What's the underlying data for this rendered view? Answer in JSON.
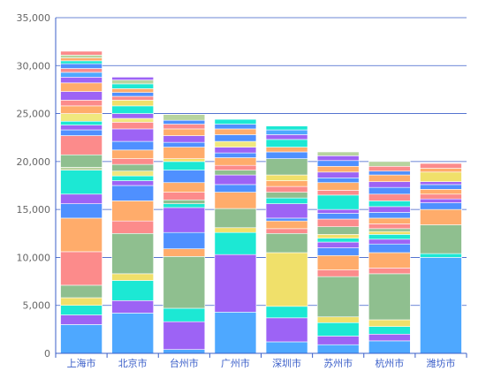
{
  "chart_data": {
    "type": "bar",
    "stacked": true,
    "title": "",
    "xlabel": "",
    "ylabel": "",
    "ylim": [
      0,
      35000
    ],
    "yticks": [
      0,
      5000,
      10000,
      15000,
      20000,
      25000,
      30000,
      35000
    ],
    "ytick_labels": [
      "0",
      "5,000",
      "10,000",
      "15,000",
      "20,000",
      "25,000",
      "30,000",
      "35,000"
    ],
    "grid": true,
    "categories": [
      "上海市",
      "北京市",
      "台州市",
      "广州市",
      "深圳市",
      "苏州市",
      "杭州市",
      "潍坊市"
    ],
    "totals": [
      31500,
      28800,
      24900,
      24400,
      23700,
      21000,
      20000,
      19800
    ],
    "palette": [
      "#4ea8ff",
      "#9d63f5",
      "#1ce8d4",
      "#f0e06a",
      "#8fbf8f",
      "#fc8b8b",
      "#ffac6b",
      "#4f90ff",
      "#b7d49e",
      "#f0e87e"
    ],
    "segments": [
      [
        [
          0,
          3000,
          "#4ea8ff"
        ],
        [
          3000,
          4000,
          "#9d63f5"
        ],
        [
          4000,
          5000,
          "#1ce8d4"
        ],
        [
          5000,
          5800,
          "#f0e06a"
        ],
        [
          5800,
          7100,
          "#8fbf8f"
        ],
        [
          7100,
          10600,
          "#fc8b8b"
        ],
        [
          10600,
          14100,
          "#ffac6b"
        ],
        [
          14100,
          15600,
          "#4f90ff"
        ],
        [
          15600,
          16600,
          "#9d63f5"
        ],
        [
          16600,
          19100,
          "#1ce8d4"
        ],
        [
          19100,
          19400,
          "#b7d49e"
        ],
        [
          19400,
          20700,
          "#8fbf8f"
        ],
        [
          20700,
          22700,
          "#fc8b8b"
        ],
        [
          22700,
          23300,
          "#4f90ff"
        ],
        [
          23300,
          23800,
          "#9d63f5"
        ],
        [
          23800,
          24200,
          "#1ce8d4"
        ],
        [
          24200,
          25000,
          "#f0e87e"
        ],
        [
          25000,
          25800,
          "#ffac6b"
        ],
        [
          25800,
          26400,
          "#fc8b8b"
        ],
        [
          26400,
          27300,
          "#9d63f5"
        ],
        [
          27300,
          28200,
          "#ffac6b"
        ],
        [
          28200,
          28800,
          "#9d63f5"
        ],
        [
          28800,
          29300,
          "#4ea8ff"
        ],
        [
          29300,
          29700,
          "#fc8b8b"
        ],
        [
          29700,
          30200,
          "#4f90ff"
        ],
        [
          30200,
          30500,
          "#1ce8d4"
        ],
        [
          30500,
          30800,
          "#ffac6b"
        ],
        [
          30800,
          31100,
          "#b7d49e"
        ],
        [
          31100,
          31500,
          "#fc8b8b"
        ]
      ],
      [
        [
          0,
          4200,
          "#4ea8ff"
        ],
        [
          4200,
          5500,
          "#9d63f5"
        ],
        [
          5500,
          7600,
          "#1ce8d4"
        ],
        [
          7600,
          8300,
          "#f0e06a"
        ],
        [
          8300,
          12500,
          "#8fbf8f"
        ],
        [
          12500,
          13800,
          "#fc8b8b"
        ],
        [
          13800,
          15900,
          "#ffac6b"
        ],
        [
          15900,
          17500,
          "#4f90ff"
        ],
        [
          17500,
          18000,
          "#9d63f5"
        ],
        [
          18000,
          18500,
          "#1ce8d4"
        ],
        [
          18500,
          19000,
          "#f0e87e"
        ],
        [
          19000,
          19700,
          "#8fbf8f"
        ],
        [
          19700,
          20300,
          "#fc8b8b"
        ],
        [
          20300,
          21200,
          "#ffac6b"
        ],
        [
          21200,
          22100,
          "#4f90ff"
        ],
        [
          22100,
          23400,
          "#9d63f5"
        ],
        [
          23400,
          24100,
          "#fc8b8b"
        ],
        [
          24100,
          24500,
          "#f0e87e"
        ],
        [
          24500,
          25000,
          "#9d63f5"
        ],
        [
          25000,
          25800,
          "#1ce8d4"
        ],
        [
          25800,
          26400,
          "#f0e06a"
        ],
        [
          26400,
          26800,
          "#fc8b8b"
        ],
        [
          26800,
          27200,
          "#4f90ff"
        ],
        [
          27200,
          27600,
          "#ffac6b"
        ],
        [
          27600,
          28100,
          "#1ce8d4"
        ],
        [
          28100,
          28500,
          "#b7d49e"
        ],
        [
          28500,
          28800,
          "#9d63f5"
        ]
      ],
      [
        [
          0,
          400,
          "#4ea8ff"
        ],
        [
          400,
          3300,
          "#9d63f5"
        ],
        [
          3300,
          4700,
          "#1ce8d4"
        ],
        [
          4700,
          10100,
          "#8fbf8f"
        ],
        [
          10100,
          10900,
          "#ffac6b"
        ],
        [
          10900,
          12600,
          "#4f90ff"
        ],
        [
          12600,
          15200,
          "#9d63f5"
        ],
        [
          15200,
          15600,
          "#1ce8d4"
        ],
        [
          15600,
          16000,
          "#8fbf8f"
        ],
        [
          16000,
          16800,
          "#fc8b8b"
        ],
        [
          16800,
          17800,
          "#ffac6b"
        ],
        [
          17800,
          19100,
          "#4f90ff"
        ],
        [
          19100,
          20000,
          "#1ce8d4"
        ],
        [
          20000,
          20300,
          "#f0e06a"
        ],
        [
          20300,
          21500,
          "#ffac6b"
        ],
        [
          21500,
          22000,
          "#4f90ff"
        ],
        [
          22000,
          22700,
          "#9d63f5"
        ],
        [
          22700,
          23400,
          "#ffac6b"
        ],
        [
          23400,
          23900,
          "#fc8b8b"
        ],
        [
          23900,
          24300,
          "#4f90ff"
        ],
        [
          24300,
          24900,
          "#b7d49e"
        ]
      ],
      [
        [
          0,
          4300,
          "#4ea8ff"
        ],
        [
          4300,
          10300,
          "#9d63f5"
        ],
        [
          10300,
          12600,
          "#1ce8d4"
        ],
        [
          12600,
          13100,
          "#f0e06a"
        ],
        [
          13100,
          15100,
          "#8fbf8f"
        ],
        [
          15100,
          16800,
          "#ffac6b"
        ],
        [
          16800,
          17600,
          "#4f90ff"
        ],
        [
          17600,
          18600,
          "#9d63f5"
        ],
        [
          18600,
          19100,
          "#8fbf8f"
        ],
        [
          19100,
          19600,
          "#fc8b8b"
        ],
        [
          19600,
          20400,
          "#ffac6b"
        ],
        [
          20400,
          20900,
          "#4f90ff"
        ],
        [
          20900,
          21500,
          "#9d63f5"
        ],
        [
          21500,
          22100,
          "#f0e87e"
        ],
        [
          22100,
          22800,
          "#4f90ff"
        ],
        [
          22800,
          23400,
          "#ffac6b"
        ],
        [
          23400,
          23900,
          "#4f90ff"
        ],
        [
          23900,
          24400,
          "#1ce8d4"
        ]
      ],
      [
        [
          0,
          1200,
          "#4ea8ff"
        ],
        [
          1200,
          3700,
          "#9d63f5"
        ],
        [
          3700,
          4900,
          "#1ce8d4"
        ],
        [
          4900,
          10500,
          "#f0e06a"
        ],
        [
          10500,
          12500,
          "#8fbf8f"
        ],
        [
          12500,
          13000,
          "#fc8b8b"
        ],
        [
          13000,
          13800,
          "#ffac6b"
        ],
        [
          13800,
          14100,
          "#4f90ff"
        ],
        [
          14100,
          15600,
          "#9d63f5"
        ],
        [
          15600,
          16200,
          "#1ce8d4"
        ],
        [
          16200,
          16800,
          "#8fbf8f"
        ],
        [
          16800,
          17400,
          "#fc8b8b"
        ],
        [
          17400,
          18000,
          "#ffac6b"
        ],
        [
          18000,
          18600,
          "#f0e06a"
        ],
        [
          18600,
          20300,
          "#8fbf8f"
        ],
        [
          20300,
          21000,
          "#4f90ff"
        ],
        [
          21000,
          21500,
          "#ffac6b"
        ],
        [
          21500,
          22300,
          "#1ce8d4"
        ],
        [
          22300,
          22800,
          "#9d63f5"
        ],
        [
          22800,
          23300,
          "#4ea8ff"
        ],
        [
          23300,
          23700,
          "#1ce8d4"
        ]
      ],
      [
        [
          0,
          900,
          "#4ea8ff"
        ],
        [
          900,
          1800,
          "#9d63f5"
        ],
        [
          1800,
          3200,
          "#1ce8d4"
        ],
        [
          3200,
          3800,
          "#f0e06a"
        ],
        [
          3800,
          8000,
          "#8fbf8f"
        ],
        [
          8000,
          8700,
          "#fc8b8b"
        ],
        [
          8700,
          10200,
          "#ffac6b"
        ],
        [
          10200,
          11000,
          "#4f90ff"
        ],
        [
          11000,
          11600,
          "#9d63f5"
        ],
        [
          11600,
          12000,
          "#1ce8d4"
        ],
        [
          12000,
          12400,
          "#f0e06a"
        ],
        [
          12400,
          13200,
          "#8fbf8f"
        ],
        [
          13200,
          14000,
          "#fc8b8b"
        ],
        [
          14000,
          14600,
          "#4f90ff"
        ],
        [
          14600,
          15000,
          "#9d63f5"
        ],
        [
          15000,
          16500,
          "#1ce8d4"
        ],
        [
          16500,
          17000,
          "#fc8b8b"
        ],
        [
          17000,
          17800,
          "#ffac6b"
        ],
        [
          17800,
          18300,
          "#4f90ff"
        ],
        [
          18300,
          18900,
          "#9d63f5"
        ],
        [
          18900,
          19500,
          "#ffac6b"
        ],
        [
          19500,
          20100,
          "#4f90ff"
        ],
        [
          20100,
          20600,
          "#9d63f5"
        ],
        [
          20600,
          21000,
          "#b7d49e"
        ]
      ],
      [
        [
          0,
          1300,
          "#4ea8ff"
        ],
        [
          1300,
          2000,
          "#9d63f5"
        ],
        [
          2000,
          2800,
          "#1ce8d4"
        ],
        [
          2800,
          3500,
          "#f0e06a"
        ],
        [
          3500,
          8300,
          "#8fbf8f"
        ],
        [
          8300,
          8900,
          "#fc8b8b"
        ],
        [
          8900,
          10500,
          "#ffac6b"
        ],
        [
          10500,
          11400,
          "#4f90ff"
        ],
        [
          11400,
          11900,
          "#9d63f5"
        ],
        [
          11900,
          12400,
          "#1ce8d4"
        ],
        [
          12400,
          12700,
          "#f0e06a"
        ],
        [
          12700,
          13000,
          "#8fbf8f"
        ],
        [
          13000,
          13500,
          "#fc8b8b"
        ],
        [
          13500,
          14100,
          "#ffac6b"
        ],
        [
          14100,
          14700,
          "#4f90ff"
        ],
        [
          14700,
          15300,
          "#9d63f5"
        ],
        [
          15300,
          15900,
          "#1ce8d4"
        ],
        [
          15900,
          16600,
          "#fc8b8b"
        ],
        [
          16600,
          17300,
          "#4f90ff"
        ],
        [
          17300,
          17900,
          "#9d63f5"
        ],
        [
          17900,
          18600,
          "#ffac6b"
        ],
        [
          18600,
          19000,
          "#4f90ff"
        ],
        [
          19000,
          19500,
          "#fc8b8b"
        ],
        [
          19500,
          20000,
          "#b7d49e"
        ]
      ],
      [
        [
          0,
          10000,
          "#4ea8ff"
        ],
        [
          10000,
          10400,
          "#1ce8d4"
        ],
        [
          10400,
          13400,
          "#8fbf8f"
        ],
        [
          13400,
          15000,
          "#ffac6b"
        ],
        [
          15000,
          15700,
          "#4f90ff"
        ],
        [
          15700,
          16100,
          "#9d63f5"
        ],
        [
          16100,
          16600,
          "#fc8b8b"
        ],
        [
          16600,
          17100,
          "#ffac6b"
        ],
        [
          17100,
          17600,
          "#4f90ff"
        ],
        [
          17600,
          17900,
          "#9d63f5"
        ],
        [
          17900,
          18900,
          "#f0e06a"
        ],
        [
          18900,
          19300,
          "#ffac6b"
        ],
        [
          19300,
          19800,
          "#fc8b8b"
        ]
      ]
    ]
  }
}
